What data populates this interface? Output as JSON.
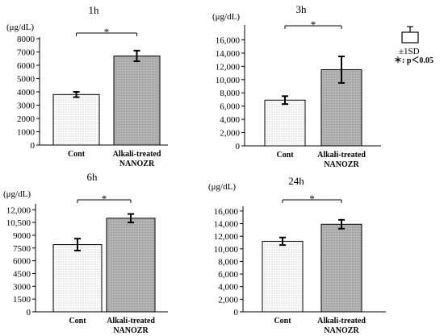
{
  "legend": {
    "sd_label": "±1SD",
    "significance_label": "＊: p＜0.05"
  },
  "chart_data": [
    {
      "type": "bar",
      "title": "1h",
      "ylabel": "(μg/dL)",
      "categories": [
        "Cont",
        "Alkali-treated NANOZR"
      ],
      "category_lines": [
        [
          "Cont"
        ],
        [
          "Alkali-treated",
          "NANOZR"
        ]
      ],
      "values": [
        3800,
        6700
      ],
      "errors": [
        200,
        400
      ],
      "ylim": [
        0,
        8000
      ],
      "yticks": [
        0,
        1000,
        2000,
        3000,
        4000,
        5000,
        6000,
        7000,
        8000
      ],
      "ytick_labels": [
        "0",
        "1000",
        "2000",
        "3000",
        "4000",
        "5000",
        "6000",
        "7000",
        "8000"
      ],
      "significance": "*",
      "grid": false
    },
    {
      "type": "bar",
      "title": "3h",
      "ylabel": "(μg/dL)",
      "categories": [
        "Cont",
        "Alkali-treated NANOZR"
      ],
      "category_lines": [
        [
          "Cont"
        ],
        [
          "Alkali-treated",
          "NANOZR"
        ]
      ],
      "values": [
        6900,
        11500
      ],
      "errors": [
        600,
        2000
      ],
      "ylim": [
        0,
        18000
      ],
      "yticks": [
        0,
        2000,
        4000,
        6000,
        8000,
        10000,
        12000,
        14000,
        16000
      ],
      "ytick_labels": [
        "0",
        "2,000",
        "4,000",
        "6,000",
        "8,000",
        "10,000",
        "12,000",
        "14,000",
        "16,000"
      ],
      "significance": "*",
      "grid": false
    },
    {
      "type": "bar",
      "title": "6h",
      "ylabel": "(μg/dL)",
      "categories": [
        "Cont",
        "Alkali-treated NANOZR"
      ],
      "category_lines": [
        [
          "Cont"
        ],
        [
          "Alkali-treated",
          "NANOZR"
        ]
      ],
      "values": [
        7900,
        11000
      ],
      "errors": [
        700,
        500
      ],
      "ylim": [
        0,
        12500
      ],
      "yticks": [
        0,
        1500,
        3000,
        4500,
        6000,
        7500,
        9000,
        10500,
        12000
      ],
      "ytick_labels": [
        "0",
        "1500",
        "3000",
        "4500",
        "6000",
        "7500",
        "9000",
        "10,500",
        "12,000"
      ],
      "significance": "*",
      "grid": false
    },
    {
      "type": "bar",
      "title": "24h",
      "ylabel": "(μg/dL)",
      "categories": [
        "Cont",
        "Alkali-treated NANOZR"
      ],
      "category_lines": [
        [
          "Cont"
        ],
        [
          "Alkali-treated",
          "NANOZR"
        ]
      ],
      "values": [
        11200,
        13900
      ],
      "errors": [
        600,
        700
      ],
      "ylim": [
        0,
        16500
      ],
      "yticks": [
        0,
        2000,
        4000,
        6000,
        8000,
        10000,
        12000,
        14000,
        16000
      ],
      "ytick_labels": [
        "0",
        "2,000",
        "4,000",
        "6,000",
        "8,000",
        "10,000",
        "12,000",
        "14,000",
        "16,000"
      ],
      "significance": "*",
      "grid": false
    }
  ]
}
